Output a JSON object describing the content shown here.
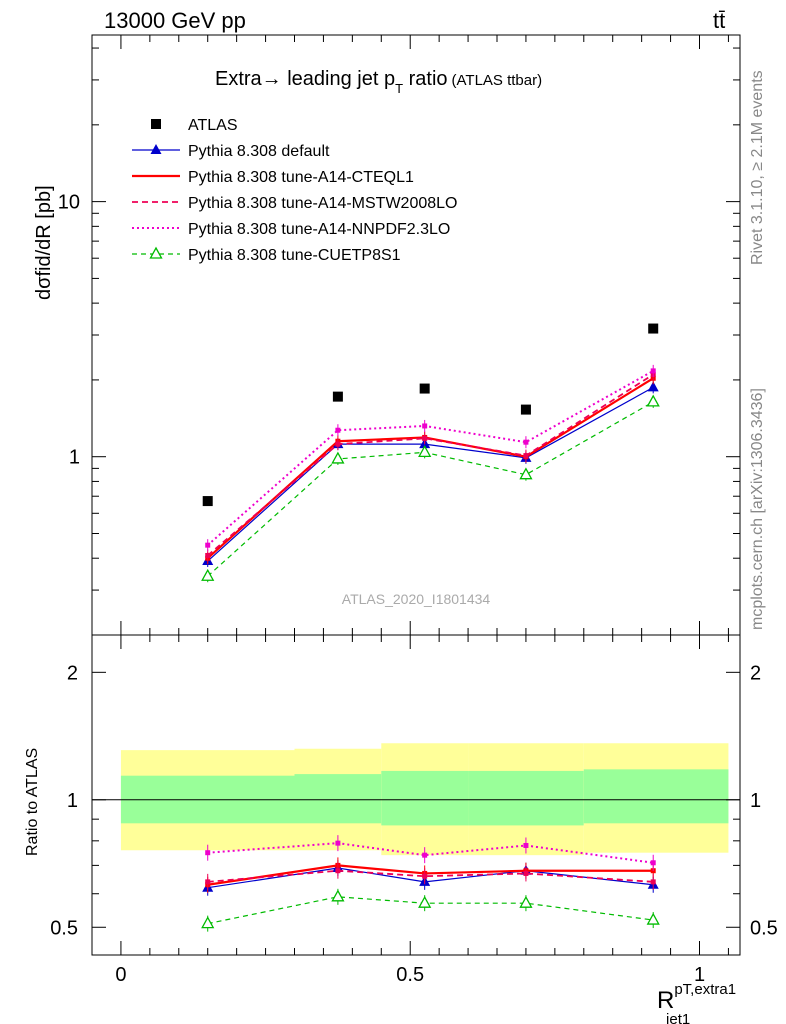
{
  "header": {
    "energy_label": "13000 GeV pp",
    "process_label": "tt̄",
    "plot_title": "Extra→ leading jet p",
    "plot_title_sub": "T",
    "plot_title_tail": " ratio",
    "plot_subtitle": "(ATLAS ttbar)",
    "watermark": "ATLAS_2020_I1801434",
    "side_text_top": "Rivet 3.1.10, ≥ 2.1M events",
    "side_text_bottom": "mcplots.cern.ch [arXiv:1306.3436]"
  },
  "colors": {
    "data": "#000000",
    "default": "#0000cc",
    "cteql1": "#ff0000",
    "mstw": "#ee0055",
    "nnpdf": "#ee00cc",
    "cuetp8s1": "#00bb00",
    "band_outer": "#ffff99",
    "band_inner": "#99ff99"
  },
  "chart_data": [
    {
      "type": "line",
      "panel": "main",
      "ylabel": "dσfid/dR [pb]",
      "y_scale": "log",
      "ylim": [
        0.2,
        45
      ],
      "xlim": [
        -0.05,
        1.07
      ],
      "y_tick_labels": [
        "1",
        "10"
      ],
      "y_tick_values": [
        1,
        10
      ],
      "legend_position": "top-left",
      "x": [
        0.15,
        0.375,
        0.525,
        0.7,
        0.92
      ],
      "series": [
        {
          "name": "ATLAS",
          "key": "data",
          "marker": "square",
          "values": [
            0.67,
            1.72,
            1.85,
            1.53,
            3.18
          ]
        },
        {
          "name": "Pythia 8.308 default",
          "key": "default",
          "marker": "triangle",
          "values": [
            0.39,
            1.12,
            1.12,
            0.99,
            1.87
          ]
        },
        {
          "name": "Pythia 8.308 tune-A14-CTEQL1",
          "key": "cteql1",
          "marker": "none",
          "values": [
            0.4,
            1.15,
            1.19,
            1.0,
            2.03
          ]
        },
        {
          "name": "Pythia 8.308 tune-A14-MSTW2008LO",
          "key": "mstw",
          "marker": "none",
          "values": [
            0.41,
            1.12,
            1.18,
            1.01,
            2.1
          ]
        },
        {
          "name": "Pythia 8.308 tune-A14-NNPDF2.3LO",
          "key": "nnpdf",
          "marker": "none",
          "values": [
            0.45,
            1.27,
            1.32,
            1.14,
            2.17
          ]
        },
        {
          "name": "Pythia 8.308 tune-CUETP8S1",
          "key": "cuetp8s1",
          "marker": "open-triangle",
          "values": [
            0.34,
            0.98,
            1.04,
            0.85,
            1.64
          ]
        }
      ]
    },
    {
      "type": "line",
      "panel": "ratio",
      "ylabel": "Ratio to ATLAS",
      "xlabel": "R",
      "xlabel_sup": "pT,extra1",
      "xlabel_sub": "jet1",
      "y_scale": "log",
      "ylim": [
        0.43,
        2.45
      ],
      "xlim": [
        -0.05,
        1.07
      ],
      "y_tick_labels": [
        "0.5",
        "1",
        "2"
      ],
      "y_tick_values": [
        0.5,
        1,
        2
      ],
      "x_tick_labels": [
        "0",
        "0.5",
        "1"
      ],
      "x_tick_values": [
        0,
        0.5,
        1
      ],
      "band_bins": [
        {
          "x_low": 0.0,
          "x_high": 0.3,
          "outer": [
            0.76,
            1.31
          ],
          "inner": [
            0.88,
            1.14
          ]
        },
        {
          "x_low": 0.3,
          "x_high": 0.45,
          "outer": [
            0.76,
            1.32
          ],
          "inner": [
            0.88,
            1.15
          ]
        },
        {
          "x_low": 0.45,
          "x_high": 0.6,
          "outer": [
            0.74,
            1.36
          ],
          "inner": [
            0.87,
            1.17
          ]
        },
        {
          "x_low": 0.6,
          "x_high": 0.8,
          "outer": [
            0.74,
            1.36
          ],
          "inner": [
            0.87,
            1.17
          ]
        },
        {
          "x_low": 0.8,
          "x_high": 1.05,
          "outer": [
            0.75,
            1.36
          ],
          "inner": [
            0.88,
            1.18
          ]
        }
      ],
      "x": [
        0.15,
        0.375,
        0.525,
        0.7,
        0.92
      ],
      "series": [
        {
          "name": "Pythia 8.308 default",
          "key": "default",
          "marker": "triangle",
          "values": [
            0.62,
            0.69,
            0.64,
            0.68,
            0.63
          ]
        },
        {
          "name": "Pythia 8.308 tune-A14-CTEQL1",
          "key": "cteql1",
          "marker": "none",
          "values": [
            0.63,
            0.7,
            0.67,
            0.68,
            0.68
          ]
        },
        {
          "name": "Pythia 8.308 tune-A14-MSTW2008LO",
          "key": "mstw",
          "marker": "none",
          "values": [
            0.64,
            0.68,
            0.66,
            0.67,
            0.64
          ]
        },
        {
          "name": "Pythia 8.308 tune-A14-NNPDF2.3LO",
          "key": "nnpdf",
          "marker": "none",
          "values": [
            0.75,
            0.79,
            0.74,
            0.78,
            0.71
          ]
        },
        {
          "name": "Pythia 8.308 tune-CUETP8S1",
          "key": "cuetp8s1",
          "marker": "open-triangle",
          "values": [
            0.51,
            0.59,
            0.57,
            0.57,
            0.52
          ]
        }
      ]
    }
  ]
}
